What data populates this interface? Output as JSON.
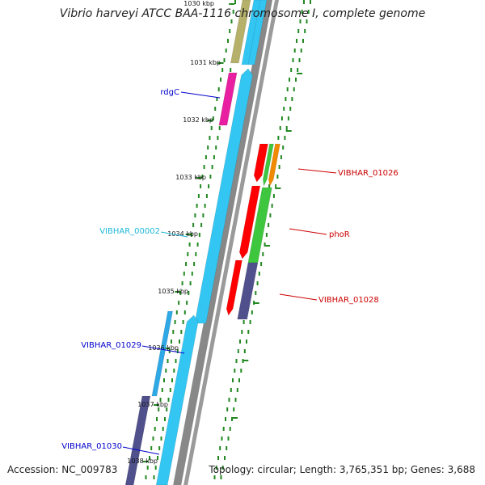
{
  "title": "Vibrio harveyi ATCC BAA-1116 chromosome I, complete genome",
  "accession": "Accession: NC_009783",
  "topology": "Topology: circular; Length: 3,765,351 bp; Genes: 3,688",
  "scale": {
    "ticks": [
      "1030 kbp",
      "1031 kbp",
      "1032 kbp",
      "1033 kbp",
      "1034 kbp",
      "1035 kbp",
      "1036 kbp",
      "1037 kbp",
      "1038 kbp"
    ]
  },
  "genes": [
    {
      "id": "g_olive",
      "label": "",
      "label_color": "",
      "color": "#b5b06a",
      "strand": "plus",
      "track": 3
    },
    {
      "id": "rdgC",
      "label": "rdgC",
      "label_color": "#0000cc",
      "color": "#e81fa0",
      "strand": "plus",
      "track": 3
    },
    {
      "id": "VIBHAR_00002",
      "label": "VIBHAR_00002",
      "label_color": "#1fb8d8",
      "color": "#33c6f2",
      "strand": "plus",
      "track": 1
    },
    {
      "id": "VIBHAR_01026",
      "label": "VIBHAR_01026",
      "label_color": "#cc0000",
      "color": "#ff0000",
      "strand": "minus",
      "track": 1
    },
    {
      "id": "g_green_small",
      "label": "",
      "label_color": "",
      "color": "#3ec63e",
      "strand": "minus",
      "track": 2
    },
    {
      "id": "g_orange",
      "label": "",
      "label_color": "",
      "color": "#f08a00",
      "strand": "minus",
      "track": 3
    },
    {
      "id": "phoR",
      "label": "phoR",
      "label_color": "#cc0000",
      "color": "#ff0000",
      "strand": "minus",
      "track": 1
    },
    {
      "id": "g_green",
      "label": "",
      "label_color": "",
      "color": "#3ec63e",
      "strand": "minus",
      "track": 2
    },
    {
      "id": "VIBHAR_01028",
      "label": "VIBHAR_01028",
      "label_color": "#cc0000",
      "color": "#50508c",
      "strand": "minus",
      "track": 2
    },
    {
      "id": "VIBHAR_01029",
      "label": "VIBHAR_01029",
      "label_color": "#0000cc",
      "color": "#2fa8e6",
      "strand": "plus",
      "track": 3
    },
    {
      "id": "VIBHAR_01030",
      "label": "VIBHAR_01030",
      "label_color": "#0000cc",
      "color": "#50508c",
      "strand": "plus",
      "track": 3
    }
  ]
}
